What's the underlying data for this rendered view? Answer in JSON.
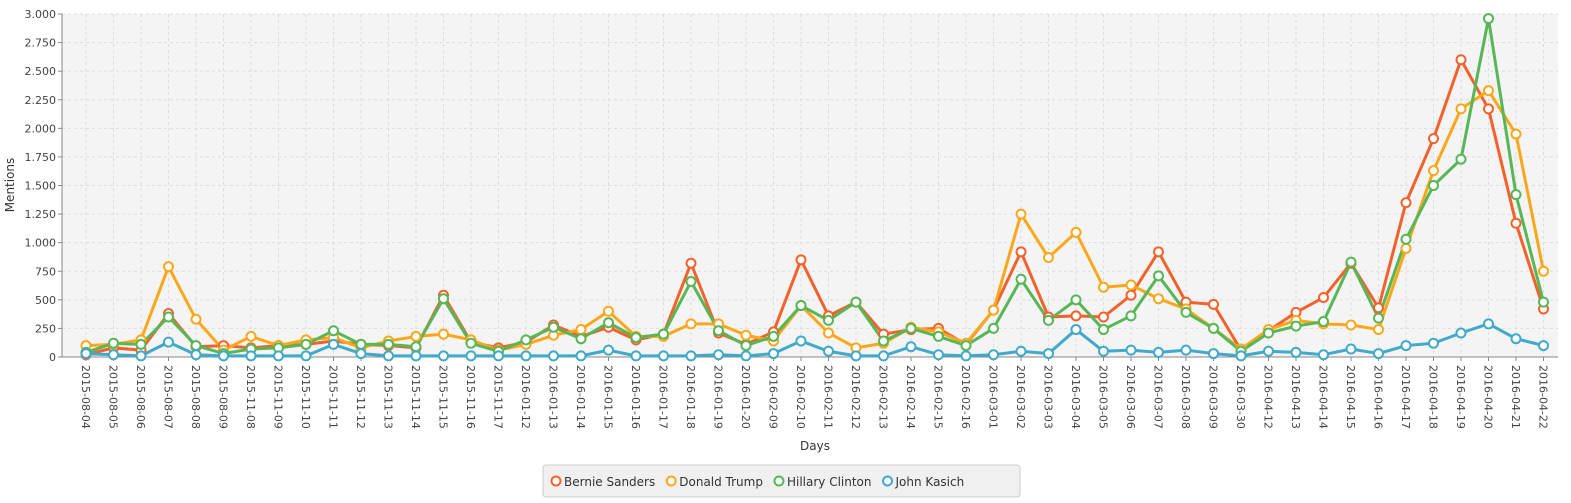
{
  "chart_data": {
    "type": "line",
    "x_label": "Days",
    "y_label": "Mentions",
    "categories": [
      "2015-08-04",
      "2015-08-05",
      "2015-08-06",
      "2015-08-07",
      "2015-08-08",
      "2015-08-09",
      "2015-11-08",
      "2015-11-09",
      "2015-11-10",
      "2015-11-11",
      "2015-11-12",
      "2015-11-13",
      "2015-11-14",
      "2015-11-15",
      "2015-11-16",
      "2015-11-17",
      "2016-01-12",
      "2016-01-13",
      "2016-01-14",
      "2016-01-15",
      "2016-01-16",
      "2016-01-17",
      "2016-01-18",
      "2016-01-19",
      "2016-01-20",
      "2016-02-09",
      "2016-02-10",
      "2016-02-11",
      "2016-02-12",
      "2016-02-13",
      "2016-02-14",
      "2016-02-15",
      "2016-02-16",
      "2016-03-01",
      "2016-03-02",
      "2016-03-03",
      "2016-03-04",
      "2016-03-05",
      "2016-03-06",
      "2016-03-07",
      "2016-03-08",
      "2016-03-09",
      "2016-03-30",
      "2016-04-12",
      "2016-04-13",
      "2016-04-14",
      "2016-04-15",
      "2016-04-16",
      "2016-04-17",
      "2016-04-18",
      "2016-04-19",
      "2016-04-20",
      "2016-04-21",
      "2016-04-22"
    ],
    "series": [
      {
        "name": "Bernie Sanders",
        "color": "#f3622d",
        "values": [
          20,
          80,
          60,
          380,
          90,
          100,
          80,
          100,
          110,
          140,
          110,
          100,
          80,
          540,
          130,
          80,
          130,
          280,
          180,
          260,
          150,
          200,
          820,
          210,
          110,
          220,
          850,
          360,
          480,
          200,
          240,
          250,
          110,
          410,
          920,
          350,
          360,
          350,
          540,
          920,
          480,
          460,
          60,
          230,
          390,
          520,
          820,
          430,
          1350,
          1910,
          2600,
          2170,
          1170,
          420
        ]
      },
      {
        "name": "Donald Trump",
        "color": "#fba71b",
        "values": [
          100,
          110,
          150,
          790,
          330,
          60,
          180,
          100,
          150,
          170,
          80,
          140,
          180,
          200,
          150,
          60,
          110,
          190,
          240,
          400,
          180,
          180,
          290,
          290,
          190,
          140,
          450,
          210,
          80,
          120,
          260,
          220,
          120,
          410,
          1250,
          870,
          1090,
          610,
          630,
          510,
          420,
          250,
          70,
          240,
          320,
          290,
          280,
          240,
          950,
          1630,
          2170,
          2330,
          1950,
          750
        ]
      },
      {
        "name": "Hillary Clinton",
        "color": "#57b757",
        "values": [
          40,
          120,
          110,
          350,
          100,
          30,
          70,
          80,
          110,
          230,
          110,
          110,
          90,
          510,
          120,
          50,
          150,
          260,
          160,
          300,
          170,
          200,
          660,
          230,
          100,
          180,
          450,
          320,
          480,
          140,
          250,
          180,
          100,
          250,
          680,
          320,
          500,
          240,
          360,
          710,
          390,
          250,
          50,
          210,
          270,
          310,
          830,
          340,
          1030,
          1500,
          1730,
          2960,
          1420,
          480
        ]
      },
      {
        "name": "John Kasich",
        "color": "#41a9c9",
        "values": [
          30,
          20,
          10,
          130,
          20,
          10,
          10,
          10,
          10,
          110,
          30,
          10,
          10,
          10,
          10,
          10,
          10,
          10,
          10,
          60,
          10,
          10,
          10,
          20,
          10,
          30,
          140,
          50,
          10,
          10,
          90,
          20,
          10,
          20,
          50,
          30,
          240,
          50,
          60,
          40,
          60,
          30,
          10,
          50,
          40,
          20,
          70,
          30,
          100,
          120,
          210,
          290,
          160,
          100
        ]
      }
    ],
    "ylim": [
      0,
      3000
    ],
    "yticks": [
      0,
      250,
      500,
      750,
      {
        "value": 1000,
        "label": "1.000"
      },
      {
        "value": 1250,
        "label": "1.250"
      },
      {
        "value": 1500,
        "label": "1.500"
      },
      {
        "value": 1750,
        "label": "1.750"
      },
      {
        "value": 2000,
        "label": "2.000"
      },
      {
        "value": 2250,
        "label": "2.250"
      },
      {
        "value": 2500,
        "label": "2.500"
      },
      {
        "value": 2750,
        "label": "2.750"
      },
      {
        "value": 3000,
        "label": "3.000"
      }
    ],
    "grid": true,
    "legend": "bottom"
  }
}
